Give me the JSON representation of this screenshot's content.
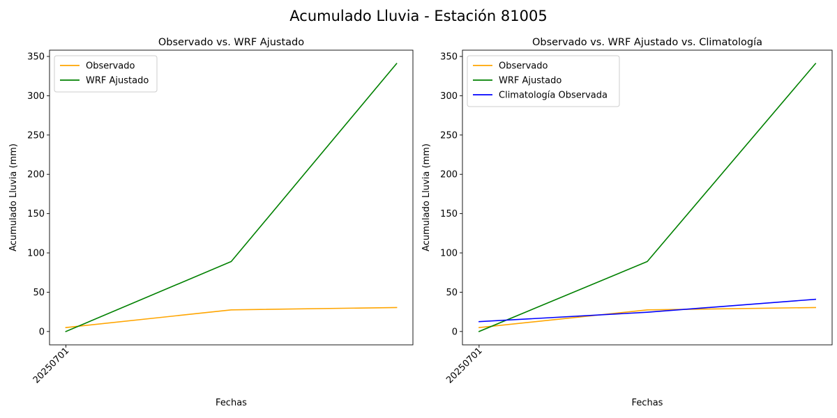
{
  "figure": {
    "title": "Acumulado Lluvia - Estación 81005"
  },
  "chart_data": [
    {
      "type": "line",
      "title": "Observado vs. WRF Ajustado",
      "xlabel": "Fechas",
      "ylabel": "Acumulado Lluvia (mm)",
      "x_tick_labels": [
        "20250701"
      ],
      "y_ticks": [
        0,
        50,
        100,
        150,
        200,
        250,
        300,
        350
      ],
      "ylim": [
        -17,
        358
      ],
      "grid": false,
      "legend_position": "top-left",
      "series": [
        {
          "name": "Observado",
          "color": "#ffa500",
          "values": [
            5,
            27.5,
            30.5
          ]
        },
        {
          "name": "WRF Ajustado",
          "color": "#008000",
          "values": [
            0,
            89,
            341
          ]
        }
      ]
    },
    {
      "type": "line",
      "title": "Observado vs. WRF Ajustado vs. Climatología",
      "xlabel": "Fechas",
      "ylabel": "Acumulado Lluvia (mm)",
      "x_tick_labels": [
        "20250701"
      ],
      "y_ticks": [
        0,
        50,
        100,
        150,
        200,
        250,
        300,
        350
      ],
      "ylim": [
        -17,
        358
      ],
      "grid": false,
      "legend_position": "top-left",
      "series": [
        {
          "name": "Observado",
          "color": "#ffa500",
          "values": [
            5,
            27.5,
            30.5
          ]
        },
        {
          "name": "WRF Ajustado",
          "color": "#008000",
          "values": [
            0,
            89,
            341
          ]
        },
        {
          "name": "Climatología Observada",
          "color": "#0000ff",
          "values": [
            12.5,
            24.5,
            41
          ]
        }
      ]
    }
  ]
}
